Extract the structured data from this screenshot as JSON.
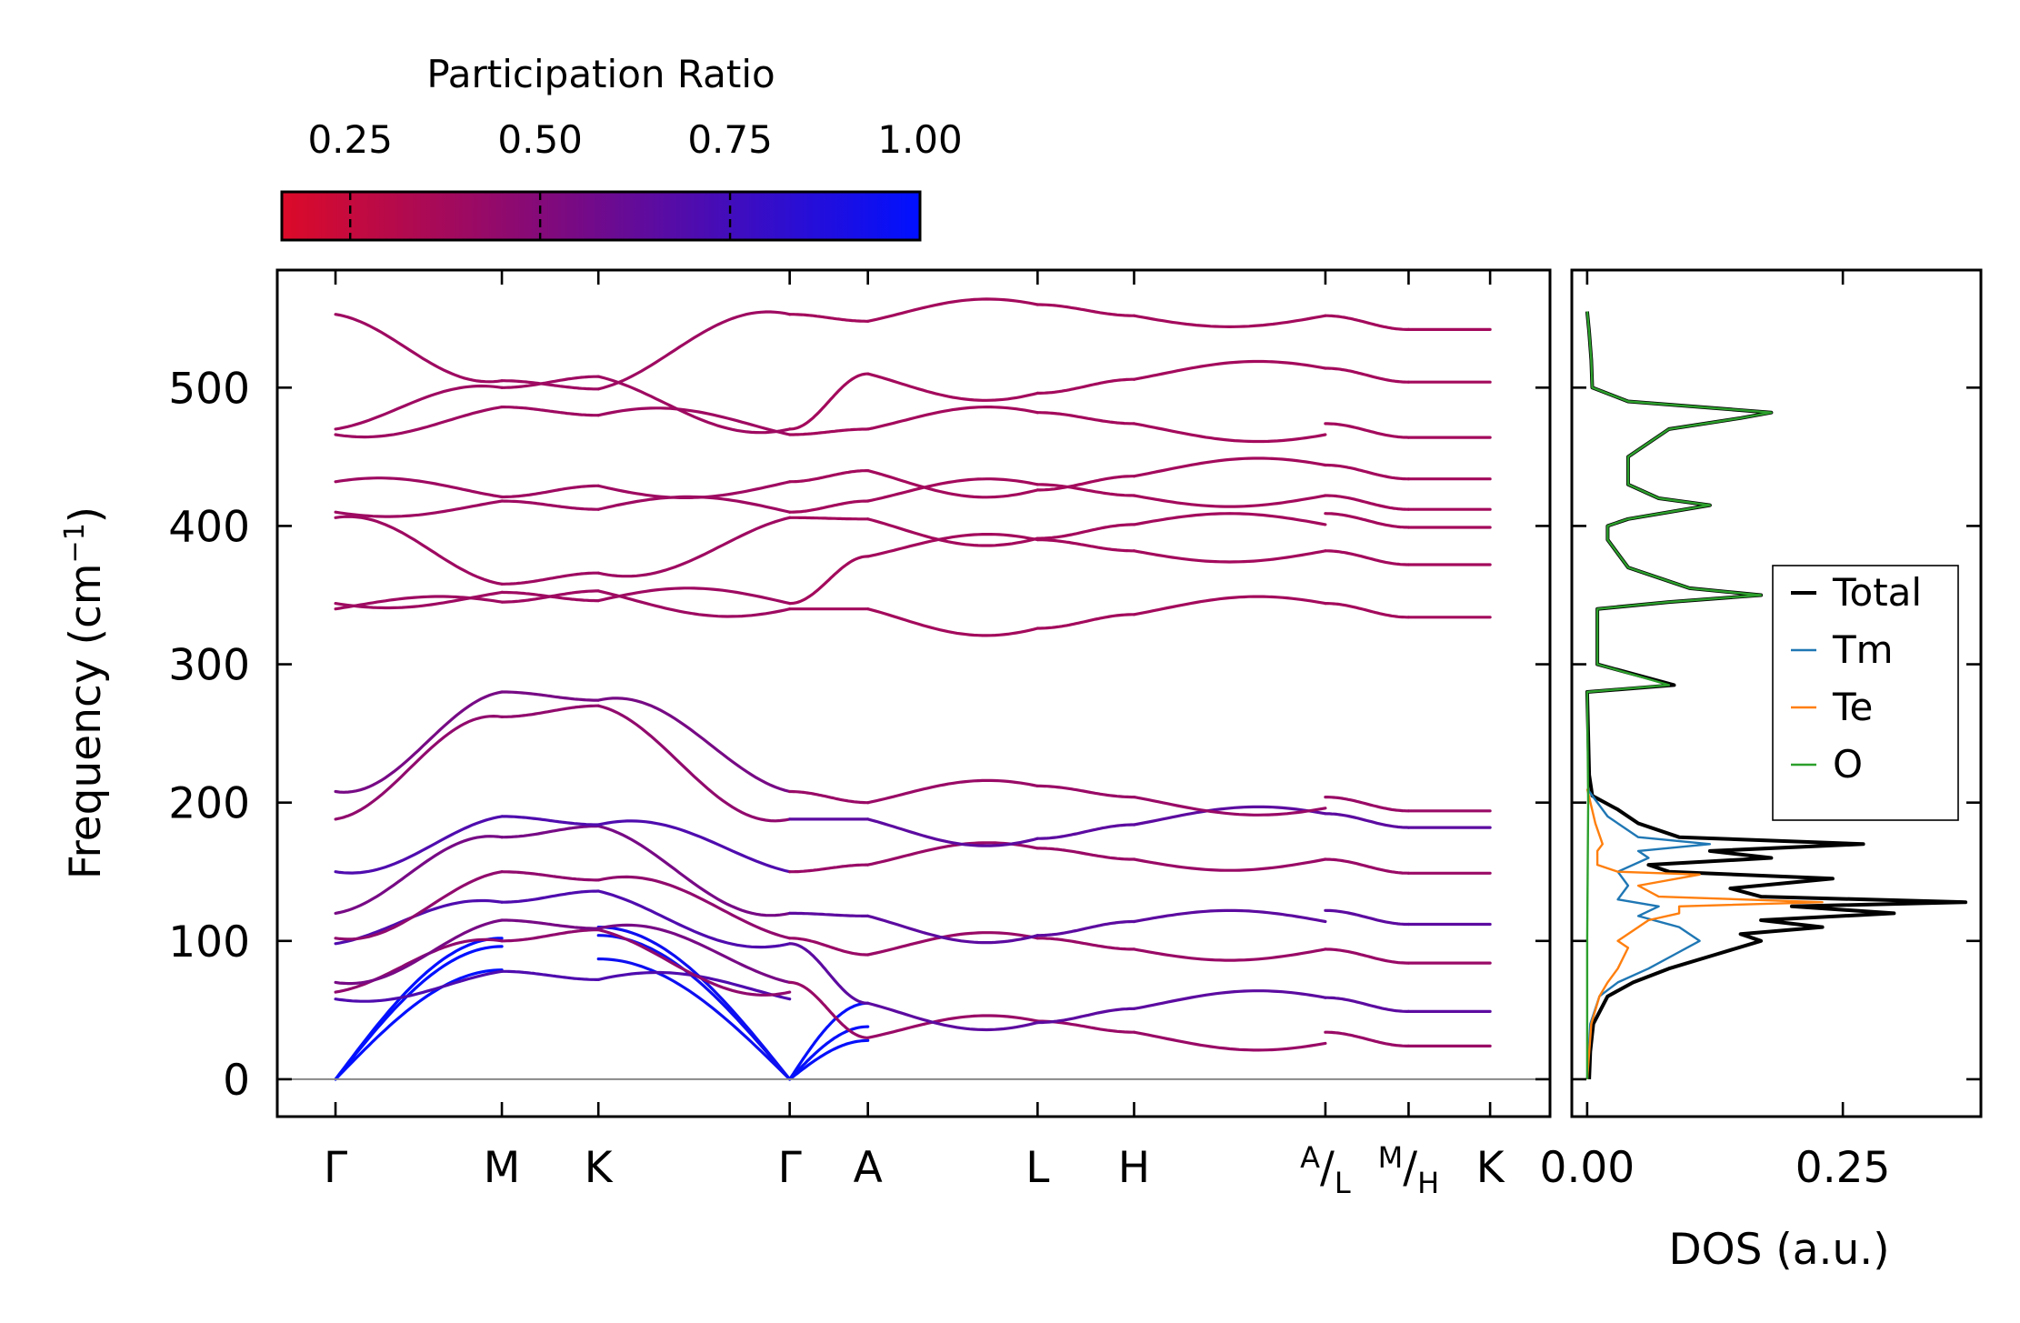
{
  "chart_data": [
    {
      "type": "line",
      "subtype": "phonon-band-structure",
      "ylabel": "Frequency (cm",
      "ylabel_sup": "−1",
      "ylabel_end": ")",
      "ylim": [
        -27,
        585
      ],
      "yticks": [
        "0",
        "100",
        "200",
        "300",
        "400",
        "500"
      ],
      "ytick_values": [
        0,
        100,
        200,
        300,
        400,
        500
      ],
      "kpath_labels": [
        "Γ",
        "M",
        "K",
        "Γ",
        "A",
        "L",
        "H",
        "A/L",
        "M/H",
        "K"
      ],
      "kpath_positions": [
        0,
        1.0,
        1.58,
        2.73,
        3.2,
        4.22,
        4.8,
        5.95,
        6.45,
        6.94
      ],
      "segment_breaks": [
        3.2,
        5.95,
        6.45
      ],
      "segment_label_A": "A",
      "segment_label_L": "L",
      "segment_label_M": "M",
      "segment_label_H": "H",
      "colorbar": {
        "title": "Participation Ratio",
        "ticks": [
          "0.25",
          "0.50",
          "0.75",
          "1.00"
        ],
        "tick_values": [
          0.25,
          0.5,
          0.75,
          1.0
        ],
        "range": [
          0.16,
          1.0
        ],
        "color_low": "#dc0a28",
        "color_mid": "#7a0a82",
        "color_high": "#0010ff"
      },
      "acoustic_endpoints": {
        "Gamma_to_M": [
          79,
          96,
          102
        ],
        "Gamma_to_A": [
          28,
          38,
          55
        ]
      },
      "optical_band_groups_cm-1": {
        "Gamma": [
          58,
          63,
          70,
          98,
          102,
          120,
          150,
          188,
          208,
          340,
          344,
          406,
          410,
          432,
          466,
          470,
          553
        ],
        "M": [
          78,
          100,
          115,
          128,
          150,
          175,
          190,
          262,
          280,
          345,
          352,
          358,
          418,
          421,
          486,
          500,
          505
        ],
        "A": [
          30,
          55,
          90,
          118,
          155,
          188,
          200,
          340,
          378,
          405,
          418,
          440,
          470,
          510,
          548
        ]
      }
    },
    {
      "type": "line",
      "subtype": "density-of-states",
      "xlabel": "DOS (a.u.)",
      "xticks": [
        "0.00",
        "0.25"
      ],
      "xtick_values": [
        0.0,
        0.25
      ],
      "xlim": [
        -0.015,
        0.385
      ],
      "legend": {
        "placement": "center-right",
        "entries": [
          "Total",
          "Tm",
          "Te",
          "O"
        ]
      },
      "series": [
        {
          "name": "Total",
          "color": "#000000",
          "points": [
            [
              0,
              0.002
            ],
            [
              20,
              0.003
            ],
            [
              40,
              0.006
            ],
            [
              60,
              0.02
            ],
            [
              70,
              0.045
            ],
            [
              80,
              0.08
            ],
            [
              90,
              0.125
            ],
            [
              100,
              0.17
            ],
            [
              105,
              0.15
            ],
            [
              110,
              0.23
            ],
            [
              115,
              0.17
            ],
            [
              120,
              0.3
            ],
            [
              125,
              0.2
            ],
            [
              128,
              0.37
            ],
            [
              132,
              0.17
            ],
            [
              138,
              0.14
            ],
            [
              145,
              0.24
            ],
            [
              150,
              0.08
            ],
            [
              155,
              0.06
            ],
            [
              160,
              0.18
            ],
            [
              165,
              0.12
            ],
            [
              170,
              0.27
            ],
            [
              175,
              0.09
            ],
            [
              185,
              0.05
            ],
            [
              195,
              0.03
            ],
            [
              205,
              0.005
            ],
            [
              220,
              0.002
            ],
            [
              280,
              0.0
            ],
            [
              285,
              0.085
            ],
            [
              300,
              0.01
            ],
            [
              340,
              0.01
            ],
            [
              345,
              0.08
            ],
            [
              350,
              0.17
            ],
            [
              355,
              0.1
            ],
            [
              370,
              0.04
            ],
            [
              390,
              0.02
            ],
            [
              400,
              0.02
            ],
            [
              405,
              0.04
            ],
            [
              415,
              0.12
            ],
            [
              420,
              0.07
            ],
            [
              430,
              0.04
            ],
            [
              450,
              0.04
            ],
            [
              470,
              0.08
            ],
            [
              478,
              0.15
            ],
            [
              482,
              0.18
            ],
            [
              490,
              0.04
            ],
            [
              500,
              0.005
            ],
            [
              520,
              0.004
            ],
            [
              540,
              0.002
            ],
            [
              555,
              0.0
            ]
          ]
        },
        {
          "name": "Tm",
          "color": "#1f77b4",
          "points": [
            [
              0,
              0.0
            ],
            [
              40,
              0.003
            ],
            [
              60,
              0.012
            ],
            [
              70,
              0.03
            ],
            [
              80,
              0.06
            ],
            [
              90,
              0.085
            ],
            [
              100,
              0.11
            ],
            [
              110,
              0.09
            ],
            [
              118,
              0.05
            ],
            [
              125,
              0.07
            ],
            [
              130,
              0.03
            ],
            [
              140,
              0.04
            ],
            [
              150,
              0.03
            ],
            [
              160,
              0.06
            ],
            [
              165,
              0.05
            ],
            [
              170,
              0.12
            ],
            [
              175,
              0.05
            ],
            [
              190,
              0.02
            ],
            [
              210,
              0.0
            ]
          ]
        },
        {
          "name": "Te",
          "color": "#ff7f0e",
          "points": [
            [
              0,
              0.0
            ],
            [
              40,
              0.004
            ],
            [
              60,
              0.012
            ],
            [
              70,
              0.02
            ],
            [
              80,
              0.03
            ],
            [
              95,
              0.04
            ],
            [
              100,
              0.03
            ],
            [
              110,
              0.05
            ],
            [
              115,
              0.06
            ],
            [
              120,
              0.09
            ],
            [
              125,
              0.09
            ],
            [
              128,
              0.23
            ],
            [
              132,
              0.07
            ],
            [
              140,
              0.05
            ],
            [
              148,
              0.11
            ],
            [
              150,
              0.03
            ],
            [
              155,
              0.01
            ],
            [
              165,
              0.01
            ],
            [
              170,
              0.015
            ],
            [
              185,
              0.008
            ],
            [
              210,
              0.0
            ]
          ]
        },
        {
          "name": "O",
          "color": "#2ca02c",
          "points": [
            [
              0,
              0.0
            ],
            [
              100,
              0.0
            ],
            [
              200,
              0.001
            ],
            [
              280,
              0.0
            ],
            [
              285,
              0.08
            ],
            [
              300,
              0.01
            ],
            [
              340,
              0.01
            ],
            [
              345,
              0.08
            ],
            [
              350,
              0.17
            ],
            [
              355,
              0.1
            ],
            [
              370,
              0.04
            ],
            [
              390,
              0.02
            ],
            [
              400,
              0.02
            ],
            [
              405,
              0.04
            ],
            [
              415,
              0.12
            ],
            [
              420,
              0.07
            ],
            [
              430,
              0.04
            ],
            [
              450,
              0.04
            ],
            [
              470,
              0.08
            ],
            [
              478,
              0.15
            ],
            [
              482,
              0.18
            ],
            [
              490,
              0.04
            ],
            [
              500,
              0.005
            ],
            [
              520,
              0.004
            ],
            [
              540,
              0.002
            ],
            [
              555,
              0.0
            ]
          ]
        }
      ]
    }
  ]
}
